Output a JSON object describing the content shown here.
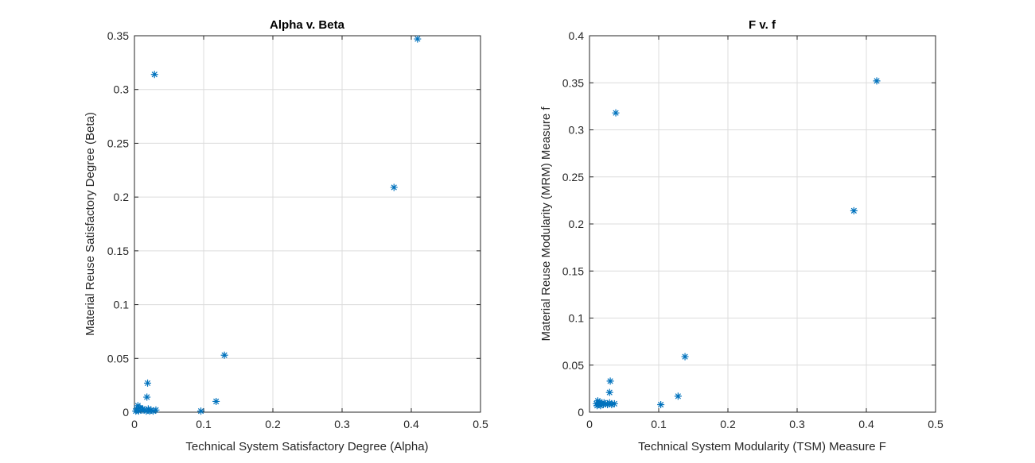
{
  "chart_data": [
    {
      "type": "scatter",
      "title": "Alpha v. Beta",
      "xlabel": "Technical System Satisfactory Degree (Alpha)",
      "ylabel": "Material Reuse Satisfactory Degree (Beta)",
      "xlim": [
        0,
        0.5
      ],
      "ylim": [
        0,
        0.35
      ],
      "xticks": [
        0,
        0.1,
        0.2,
        0.3,
        0.4,
        0.5
      ],
      "xtick_labels": [
        "0",
        "0.1",
        "0.2",
        "0.3",
        "0.4",
        "0.5"
      ],
      "yticks": [
        0,
        0.05,
        0.1,
        0.15,
        0.2,
        0.25,
        0.3,
        0.35
      ],
      "ytick_labels": [
        "0",
        "0.05",
        "0.1",
        "0.15",
        "0.2",
        "0.25",
        "0.3",
        "0.35"
      ],
      "grid": true,
      "marker": "asterisk",
      "color": "#0072bd",
      "points": [
        {
          "x": 0.409,
          "y": 0.347
        },
        {
          "x": 0.029,
          "y": 0.314
        },
        {
          "x": 0.375,
          "y": 0.209
        },
        {
          "x": 0.13,
          "y": 0.053
        },
        {
          "x": 0.019,
          "y": 0.027
        },
        {
          "x": 0.018,
          "y": 0.014
        },
        {
          "x": 0.118,
          "y": 0.01
        },
        {
          "x": 0.096,
          "y": 0.001
        },
        {
          "x": 0.005,
          "y": 0.006
        },
        {
          "x": 0.008,
          "y": 0.004
        },
        {
          "x": 0.003,
          "y": 0.003
        },
        {
          "x": 0.011,
          "y": 0.002
        },
        {
          "x": 0.014,
          "y": 0.002
        },
        {
          "x": 0.017,
          "y": 0.001
        },
        {
          "x": 0.02,
          "y": 0.003
        },
        {
          "x": 0.022,
          "y": 0.001
        },
        {
          "x": 0.024,
          "y": 0.002
        },
        {
          "x": 0.027,
          "y": 0.001
        },
        {
          "x": 0.031,
          "y": 0.002
        },
        {
          "x": 0.002,
          "y": 0.001
        },
        {
          "x": 0.006,
          "y": 0.001
        },
        {
          "x": 0.012,
          "y": 0.003
        }
      ]
    },
    {
      "type": "scatter",
      "title": "F v. f",
      "xlabel": "Technical System Modularity (TSM) Measure F",
      "ylabel": "Material Reuse Modularity (MRM) Measure f",
      "xlim": [
        0,
        0.5
      ],
      "ylim": [
        0,
        0.4
      ],
      "xticks": [
        0,
        0.1,
        0.2,
        0.3,
        0.4,
        0.5
      ],
      "xtick_labels": [
        "0",
        "0.1",
        "0.2",
        "0.3",
        "0.4",
        "0.5"
      ],
      "yticks": [
        0,
        0.05,
        0.1,
        0.15,
        0.2,
        0.25,
        0.3,
        0.35,
        0.4
      ],
      "ytick_labels": [
        "0",
        "0.05",
        "0.1",
        "0.15",
        "0.2",
        "0.25",
        "0.3",
        "0.35",
        "0.4"
      ],
      "grid": true,
      "marker": "asterisk",
      "color": "#0072bd",
      "points": [
        {
          "x": 0.415,
          "y": 0.352
        },
        {
          "x": 0.038,
          "y": 0.318
        },
        {
          "x": 0.382,
          "y": 0.214
        },
        {
          "x": 0.138,
          "y": 0.059
        },
        {
          "x": 0.03,
          "y": 0.033
        },
        {
          "x": 0.029,
          "y": 0.021
        },
        {
          "x": 0.128,
          "y": 0.017
        },
        {
          "x": 0.103,
          "y": 0.008
        },
        {
          "x": 0.012,
          "y": 0.012
        },
        {
          "x": 0.015,
          "y": 0.011
        },
        {
          "x": 0.01,
          "y": 0.009
        },
        {
          "x": 0.013,
          "y": 0.008
        },
        {
          "x": 0.017,
          "y": 0.009
        },
        {
          "x": 0.02,
          "y": 0.008
        },
        {
          "x": 0.023,
          "y": 0.009
        },
        {
          "x": 0.026,
          "y": 0.008
        },
        {
          "x": 0.029,
          "y": 0.01
        },
        {
          "x": 0.032,
          "y": 0.008
        },
        {
          "x": 0.036,
          "y": 0.009
        },
        {
          "x": 0.011,
          "y": 0.007
        },
        {
          "x": 0.016,
          "y": 0.007
        },
        {
          "x": 0.021,
          "y": 0.01
        }
      ]
    }
  ]
}
